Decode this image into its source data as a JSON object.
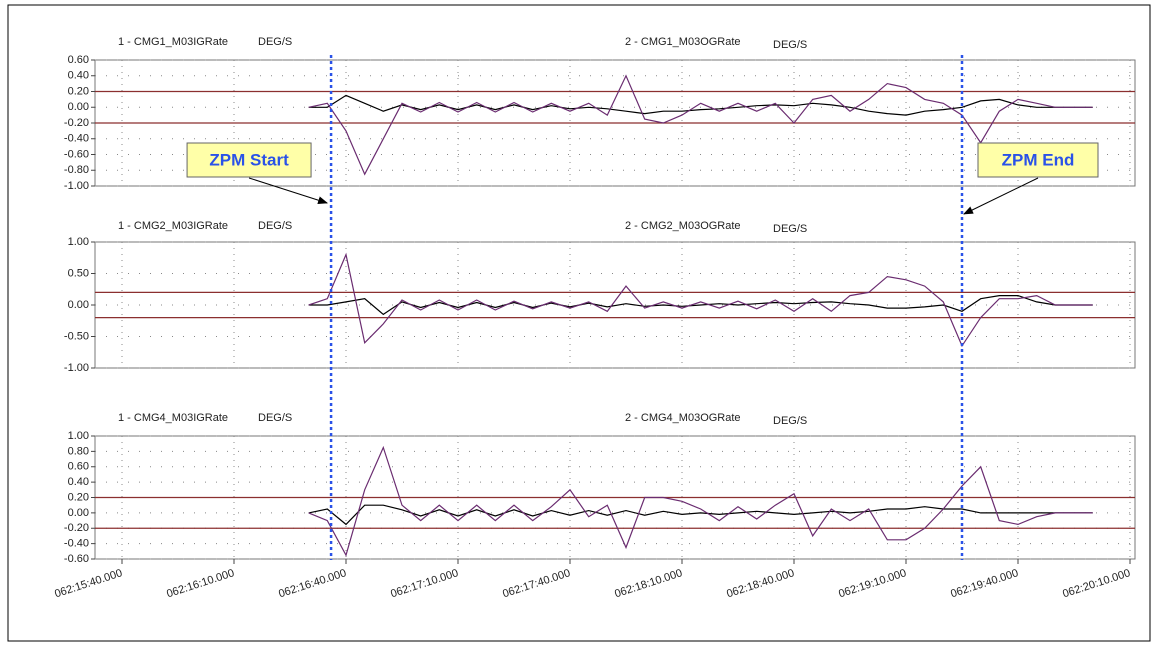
{
  "chart_data": [
    {
      "type": "line",
      "unit": "DEG/S",
      "xlim": [
        "062:15:40.000",
        "062:20:10.000"
      ],
      "ylim": [
        -1.0,
        0.6
      ],
      "yticks": [
        {
          "value": 0.6,
          "label": "0.60"
        },
        {
          "value": 0.4,
          "label": "0.40"
        },
        {
          "value": 0.2,
          "label": "0.20"
        },
        {
          "value": 0,
          "label": "0.00"
        },
        {
          "value": -0.2,
          "label": "-0.20"
        },
        {
          "value": -0.4,
          "label": "-0.40"
        },
        {
          "value": -0.6,
          "label": "-0.60"
        },
        {
          "value": -0.8,
          "label": "-0.80"
        },
        {
          "value": -1.0,
          "label": "-1.00"
        }
      ],
      "grid": true,
      "reference_lines": [
        0.2,
        -0.2
      ],
      "reference_color": "#8b2f2f",
      "annotations": [
        {
          "text": "ZPM Start",
          "x": "062:16:36.000"
        },
        {
          "text": "ZPM End",
          "x": "062:19:25.000"
        }
      ],
      "x": [
        "062:16:30.000",
        "062:16:35.000",
        "062:16:40.000",
        "062:16:45.000",
        "062:16:50.000",
        "062:16:55.000",
        "062:17:00.000",
        "062:17:05.000",
        "062:17:10.000",
        "062:17:15.000",
        "062:17:20.000",
        "062:17:25.000",
        "062:17:30.000",
        "062:17:35.000",
        "062:17:40.000",
        "062:17:45.000",
        "062:17:50.000",
        "062:17:55.000",
        "062:18:00.000",
        "062:18:05.000",
        "062:18:10.000",
        "062:18:15.000",
        "062:18:20.000",
        "062:18:25.000",
        "062:18:30.000",
        "062:18:35.000",
        "062:18:40.000",
        "062:18:45.000",
        "062:18:50.000",
        "062:18:55.000",
        "062:19:00.000",
        "062:19:05.000",
        "062:19:10.000",
        "062:19:15.000",
        "062:19:20.000",
        "062:19:25.000",
        "062:19:30.000",
        "062:19:35.000",
        "062:19:40.000",
        "062:19:45.000",
        "062:19:50.000",
        "062:19:55.000",
        "062:20:00.000"
      ],
      "series": [
        {
          "name": "1 - CMG1_M03IGRate",
          "color": "#000000",
          "values": [
            0,
            0,
            0.15,
            0.05,
            -0.05,
            0.03,
            -0.03,
            0.03,
            -0.03,
            0.03,
            -0.03,
            0.03,
            -0.03,
            0.02,
            -0.02,
            0,
            -0.02,
            -0.05,
            -0.08,
            -0.05,
            -0.05,
            -0.03,
            -0.02,
            0,
            0.02,
            0.03,
            0.02,
            0.05,
            0.03,
            0,
            -0.05,
            -0.08,
            -0.1,
            -0.05,
            -0.03,
            0,
            0.08,
            0.1,
            0.03,
            0,
            0,
            0,
            0
          ]
        },
        {
          "name": "2 - CMG1_M03OGRate",
          "color": "#6a2c70",
          "values": [
            0,
            0.05,
            -0.3,
            -0.85,
            -0.4,
            0.05,
            -0.06,
            0.06,
            -0.06,
            0.06,
            -0.06,
            0.06,
            -0.06,
            0.05,
            -0.05,
            0.05,
            -0.1,
            0.4,
            -0.15,
            -0.2,
            -0.1,
            0.05,
            -0.05,
            0.05,
            -0.05,
            0.05,
            -0.2,
            0.1,
            0.15,
            -0.05,
            0.1,
            0.3,
            0.25,
            0.1,
            0.05,
            -0.1,
            -0.45,
            -0.05,
            0.1,
            0.05,
            0,
            0,
            0
          ]
        }
      ]
    },
    {
      "type": "line",
      "unit": "DEG/S",
      "xlim": [
        "062:15:40.000",
        "062:20:10.000"
      ],
      "ylim": [
        -1.0,
        1.0
      ],
      "yticks": [
        {
          "value": 1.0,
          "label": "1.00"
        },
        {
          "value": 0.5,
          "label": "0.50"
        },
        {
          "value": 0,
          "label": "0.00"
        },
        {
          "value": -0.5,
          "label": "-0.50"
        },
        {
          "value": -1.0,
          "label": "-1.00"
        }
      ],
      "grid": true,
      "reference_lines": [
        0.2,
        -0.2
      ],
      "reference_color": "#8b2f2f",
      "x": [
        "062:16:30.000",
        "062:16:35.000",
        "062:16:40.000",
        "062:16:45.000",
        "062:16:50.000",
        "062:16:55.000",
        "062:17:00.000",
        "062:17:05.000",
        "062:17:10.000",
        "062:17:15.000",
        "062:17:20.000",
        "062:17:25.000",
        "062:17:30.000",
        "062:17:35.000",
        "062:17:40.000",
        "062:17:45.000",
        "062:17:50.000",
        "062:17:55.000",
        "062:18:00.000",
        "062:18:05.000",
        "062:18:10.000",
        "062:18:15.000",
        "062:18:20.000",
        "062:18:25.000",
        "062:18:30.000",
        "062:18:35.000",
        "062:18:40.000",
        "062:18:45.000",
        "062:18:50.000",
        "062:18:55.000",
        "062:19:00.000",
        "062:19:05.000",
        "062:19:10.000",
        "062:19:15.000",
        "062:19:20.000",
        "062:19:25.000",
        "062:19:30.000",
        "062:19:35.000",
        "062:19:40.000",
        "062:19:45.000",
        "062:19:50.000",
        "062:19:55.000",
        "062:20:00.000"
      ],
      "series": [
        {
          "name": "1 - CMG2_M03IGRate",
          "color": "#000000",
          "values": [
            0,
            0,
            0.05,
            0.1,
            -0.15,
            0.05,
            -0.04,
            0.04,
            -0.04,
            0.04,
            -0.04,
            0.04,
            -0.04,
            0.03,
            -0.03,
            0.03,
            -0.03,
            0.02,
            -0.02,
            0,
            -0.02,
            0,
            0.02,
            0,
            0.02,
            0.04,
            0.02,
            0.04,
            0.05,
            0.02,
            0,
            -0.05,
            -0.05,
            -0.03,
            0,
            -0.1,
            0.1,
            0.15,
            0.15,
            0.05,
            0,
            0,
            0
          ]
        },
        {
          "name": "2 - CMG2_M03OGRate",
          "color": "#6a2c70",
          "values": [
            0,
            0.1,
            0.8,
            -0.6,
            -0.3,
            0.08,
            -0.08,
            0.08,
            -0.08,
            0.08,
            -0.08,
            0.06,
            -0.06,
            0.05,
            -0.05,
            0.05,
            -0.1,
            0.3,
            -0.05,
            0.05,
            -0.05,
            0.05,
            -0.05,
            0.06,
            -0.06,
            0.08,
            -0.1,
            0.1,
            -0.1,
            0.15,
            0.2,
            0.45,
            0.4,
            0.3,
            0.05,
            -0.65,
            -0.2,
            0.1,
            0.1,
            0.15,
            0,
            0,
            0
          ]
        }
      ]
    },
    {
      "type": "line",
      "unit": "DEG/S",
      "xlim": [
        "062:15:40.000",
        "062:20:10.000"
      ],
      "xticks": [
        "062:15:40.000",
        "062:16:10.000",
        "062:16:40.000",
        "062:17:10.000",
        "062:17:40.000",
        "062:18:10.000",
        "062:18:40.000",
        "062:19:10.000",
        "062:19:40.000",
        "062:20:10.000"
      ],
      "ylim": [
        -0.6,
        1.0
      ],
      "yticks": [
        {
          "value": 1.0,
          "label": "1.00"
        },
        {
          "value": 0.8,
          "label": "0.80"
        },
        {
          "value": 0.6,
          "label": "0.60"
        },
        {
          "value": 0.4,
          "label": "0.40"
        },
        {
          "value": 0.2,
          "label": "0.20"
        },
        {
          "value": 0,
          "label": "0.00"
        },
        {
          "value": -0.2,
          "label": "-0.20"
        },
        {
          "value": -0.4,
          "label": "-0.40"
        },
        {
          "value": -0.6,
          "label": "-0.60"
        }
      ],
      "grid": true,
      "reference_lines": [
        0.2,
        -0.2
      ],
      "reference_color": "#8b2f2f",
      "x": [
        "062:16:30.000",
        "062:16:35.000",
        "062:16:40.000",
        "062:16:45.000",
        "062:16:50.000",
        "062:16:55.000",
        "062:17:00.000",
        "062:17:05.000",
        "062:17:10.000",
        "062:17:15.000",
        "062:17:20.000",
        "062:17:25.000",
        "062:17:30.000",
        "062:17:35.000",
        "062:17:40.000",
        "062:17:45.000",
        "062:17:50.000",
        "062:17:55.000",
        "062:18:00.000",
        "062:18:05.000",
        "062:18:10.000",
        "062:18:15.000",
        "062:18:20.000",
        "062:18:25.000",
        "062:18:30.000",
        "062:18:35.000",
        "062:18:40.000",
        "062:18:45.000",
        "062:18:50.000",
        "062:18:55.000",
        "062:19:00.000",
        "062:19:05.000",
        "062:19:10.000",
        "062:19:15.000",
        "062:19:20.000",
        "062:19:25.000",
        "062:19:30.000",
        "062:19:35.000",
        "062:19:40.000",
        "062:19:45.000",
        "062:19:50.000",
        "062:19:55.000",
        "062:20:00.000"
      ],
      "series": [
        {
          "name": "1 - CMG4_M03IGRate",
          "color": "#000000",
          "values": [
            0,
            0.05,
            -0.15,
            0.1,
            0.1,
            0.04,
            -0.04,
            0.04,
            -0.04,
            0.04,
            -0.04,
            0.04,
            -0.04,
            0.03,
            -0.03,
            0.03,
            -0.03,
            0.03,
            -0.03,
            0.02,
            -0.02,
            0,
            -0.02,
            0,
            0.02,
            0,
            -0.02,
            0,
            0.02,
            0,
            0.02,
            0.05,
            0.05,
            0.08,
            0.05,
            0.05,
            0,
            0,
            0,
            0,
            0,
            0,
            0
          ]
        },
        {
          "name": "2 - CMG4_M03OGRate",
          "color": "#6a2c70",
          "values": [
            0,
            -0.1,
            -0.55,
            0.3,
            0.85,
            0.1,
            -0.1,
            0.1,
            -0.1,
            0.1,
            -0.1,
            0.1,
            -0.1,
            0.08,
            0.3,
            -0.05,
            0.1,
            -0.45,
            0.2,
            0.2,
            0.15,
            0.05,
            -0.1,
            0.08,
            -0.08,
            0.1,
            0.25,
            -0.3,
            0.05,
            -0.1,
            0.05,
            -0.35,
            -0.35,
            -0.2,
            0.05,
            0.35,
            0.6,
            -0.1,
            -0.15,
            -0.05,
            0,
            0,
            0
          ]
        }
      ]
    }
  ]
}
